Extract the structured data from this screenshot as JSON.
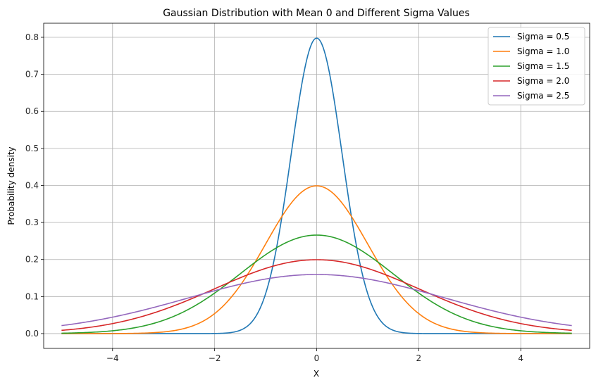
{
  "chart_data": {
    "type": "line",
    "title": "Gaussian Distribution with Mean 0 and Different Sigma Values",
    "xlabel": "X",
    "ylabel": "Probability density",
    "xlim": [
      -5.35,
      5.35
    ],
    "ylim": [
      -0.04,
      0.838
    ],
    "x_range": [
      -5,
      5
    ],
    "xticks": [
      {
        "value": -4,
        "label": "−4"
      },
      {
        "value": -2,
        "label": "−2"
      },
      {
        "value": 0,
        "label": "0"
      },
      {
        "value": 2,
        "label": "2"
      },
      {
        "value": 4,
        "label": "4"
      }
    ],
    "yticks": [
      {
        "value": 0.0,
        "label": "0.0"
      },
      {
        "value": 0.1,
        "label": "0.1"
      },
      {
        "value": 0.2,
        "label": "0.2"
      },
      {
        "value": 0.3,
        "label": "0.3"
      },
      {
        "value": 0.4,
        "label": "0.4"
      },
      {
        "value": 0.5,
        "label": "0.5"
      },
      {
        "value": 0.6,
        "label": "0.6"
      },
      {
        "value": 0.7,
        "label": "0.7"
      },
      {
        "value": 0.8,
        "label": "0.8"
      }
    ],
    "grid": true,
    "legend_position": "top-right",
    "series": [
      {
        "name": "Sigma = 0.5",
        "mean": 0,
        "sigma": 0.5,
        "color": "#1f77b4"
      },
      {
        "name": "Sigma = 1.0",
        "mean": 0,
        "sigma": 1.0,
        "color": "#ff7f0e"
      },
      {
        "name": "Sigma = 1.5",
        "mean": 0,
        "sigma": 1.5,
        "color": "#2ca02c"
      },
      {
        "name": "Sigma = 2.0",
        "mean": 0,
        "sigma": 2.0,
        "color": "#d62728"
      },
      {
        "name": "Sigma = 2.5",
        "mean": 0,
        "sigma": 2.5,
        "color": "#9467bd"
      }
    ]
  }
}
